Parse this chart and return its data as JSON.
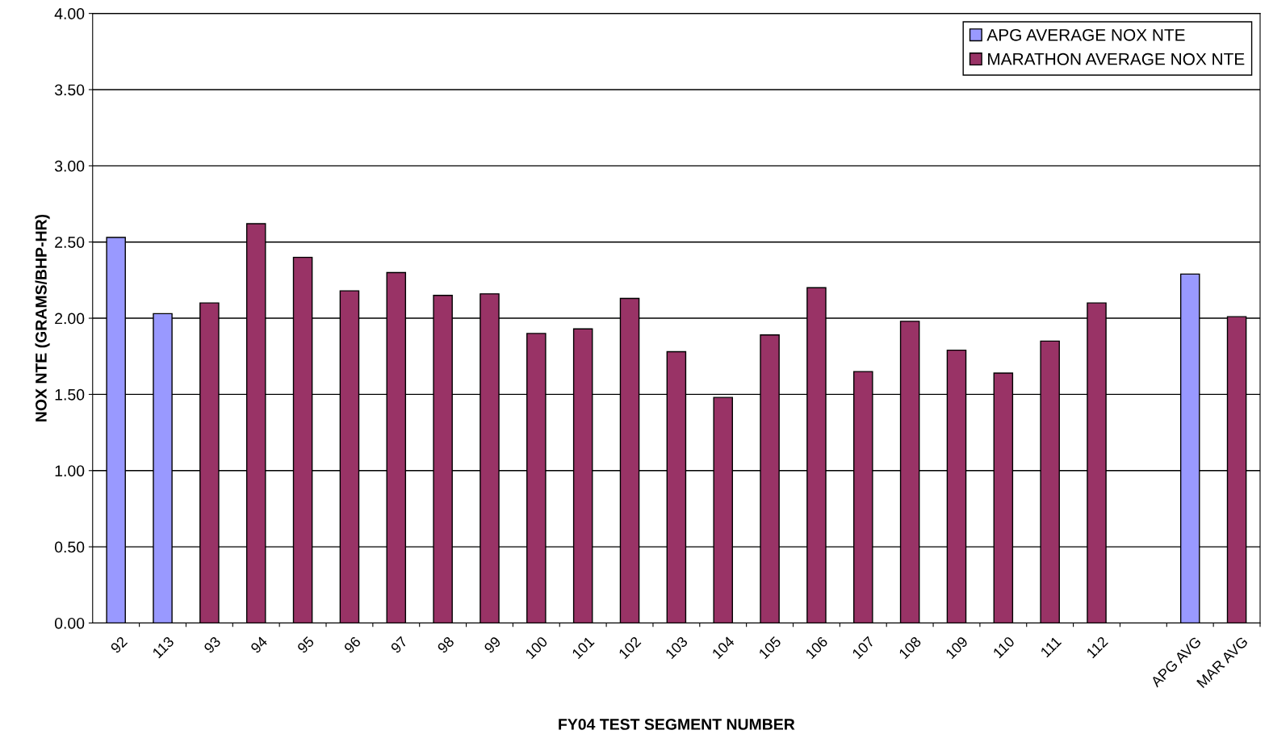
{
  "chart_data": {
    "type": "bar",
    "xlabel": "FY04 TEST SEGMENT NUMBER",
    "ylabel": "NOX NTE (GRAMS/BHP-HR)",
    "categories": [
      "92",
      "113",
      "93",
      "94",
      "95",
      "96",
      "97",
      "98",
      "99",
      "100",
      "101",
      "102",
      "103",
      "104",
      "105",
      "106",
      "107",
      "108",
      "109",
      "110",
      "111",
      "112",
      null,
      "APG AVG",
      "MAR AVG"
    ],
    "series": [
      {
        "name": "APG AVERAGE NOX NTE",
        "color": "#9999ff",
        "values": [
          2.53,
          2.03,
          null,
          null,
          null,
          null,
          null,
          null,
          null,
          null,
          null,
          null,
          null,
          null,
          null,
          null,
          null,
          null,
          null,
          null,
          null,
          null,
          null,
          2.29,
          null
        ]
      },
      {
        "name": "MARATHON AVERAGE NOX NTE",
        "color": "#993366",
        "values": [
          null,
          null,
          2.1,
          2.62,
          2.4,
          2.18,
          2.3,
          2.15,
          2.16,
          1.9,
          1.93,
          2.13,
          1.78,
          1.48,
          1.89,
          2.2,
          1.65,
          1.98,
          1.79,
          1.64,
          1.85,
          2.1,
          null,
          null,
          2.01
        ]
      }
    ],
    "ylim": [
      0,
      4
    ],
    "yticks": [
      {
        "value": 0,
        "label": "0.00"
      },
      {
        "value": 0.5,
        "label": "0.50"
      },
      {
        "value": 1,
        "label": "1.00"
      },
      {
        "value": 1.5,
        "label": "1.50"
      },
      {
        "value": 2,
        "label": "2.00"
      },
      {
        "value": 2.5,
        "label": "2.50"
      },
      {
        "value": 3,
        "label": "3.00"
      },
      {
        "value": 3.5,
        "label": "3.50"
      },
      {
        "value": 4,
        "label": "4.00"
      }
    ],
    "grid": "y",
    "legend": "top right"
  }
}
